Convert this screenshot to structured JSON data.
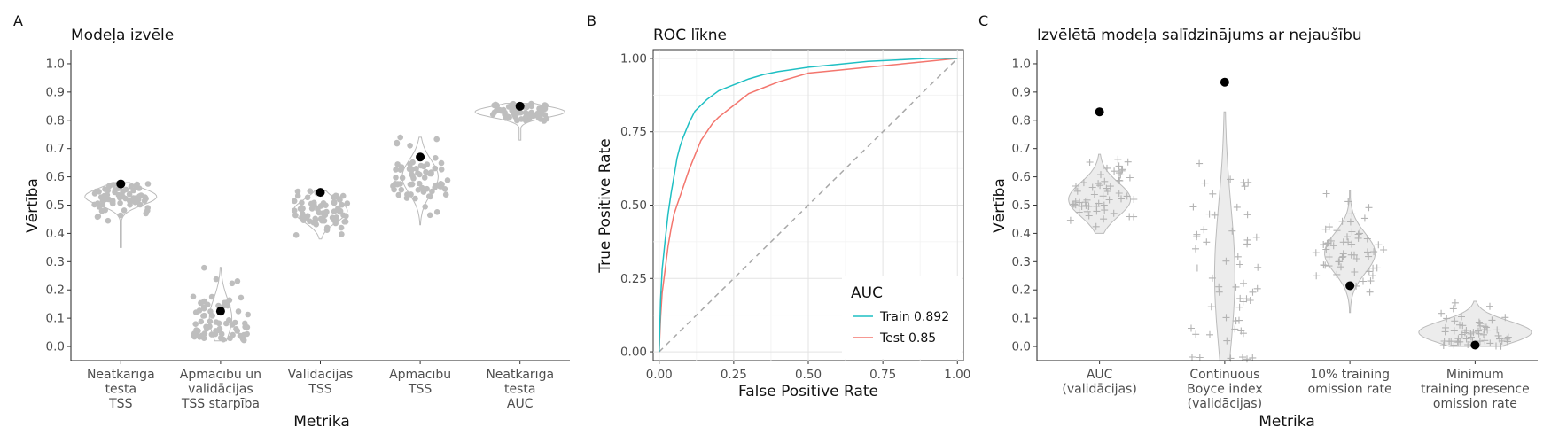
{
  "panel_labels": [
    "A",
    "B",
    "C"
  ],
  "chart_data": [
    {
      "type": "scatter",
      "title": "Modeļa izvēle",
      "xlabel": "Metrika",
      "ylabel": "Vērtība",
      "ylim": [
        -0.05,
        1.05
      ],
      "yticks": [
        "0.0",
        "0.1",
        "0.2",
        "0.3",
        "0.4",
        "0.5",
        "0.6",
        "0.7",
        "0.8",
        "0.9",
        "1.0"
      ],
      "categories": [
        [
          "Neatkarīgā",
          "testa",
          "TSS"
        ],
        [
          "Apmācību un",
          "validācijas",
          "TSS starpība"
        ],
        [
          "Validācijas",
          "TSS"
        ],
        [
          "Apmācību",
          "TSS"
        ],
        [
          "Neatkarīgā",
          "testa",
          "AUC"
        ]
      ],
      "series": [
        {
          "values": [
            0.575,
            0.125,
            0.545,
            0.67,
            0.85
          ]
        }
      ],
      "distributions": [
        {
          "center": 0.53,
          "min": 0.35,
          "max": 0.58,
          "spread": 0.03,
          "violin_width": 0.8
        },
        {
          "center": 0.1,
          "min": 0.02,
          "max": 0.28,
          "spread": 0.07,
          "violin_width": 0.25
        },
        {
          "center": 0.48,
          "min": 0.38,
          "max": 0.55,
          "spread": 0.04,
          "violin_width": 0.6
        },
        {
          "center": 0.6,
          "min": 0.43,
          "max": 0.74,
          "spread": 0.06,
          "violin_width": 0.4
        },
        {
          "center": 0.83,
          "min": 0.73,
          "max": 0.86,
          "spread": 0.02,
          "violin_width": 1.0
        }
      ],
      "colors": {
        "points": "#bebebe",
        "selected": "#000000"
      },
      "grid": false
    },
    {
      "type": "line",
      "title": "ROC līkne",
      "xlabel": "False Positive Rate",
      "ylabel": "True Positive Rate",
      "xlim": [
        -0.02,
        1.02
      ],
      "ylim": [
        -0.03,
        1.03
      ],
      "xticks": [
        "0.00",
        "0.25",
        "0.50",
        "0.75",
        "1.00"
      ],
      "yticks": [
        "0.00",
        "0.25",
        "0.50",
        "0.75",
        "1.00"
      ],
      "legend": {
        "title": "AUC",
        "position": "bottom-right"
      },
      "series": [
        {
          "name": "Train 0.892",
          "color": "#1fbfc3",
          "x": [
            0,
            0.005,
            0.01,
            0.02,
            0.03,
            0.04,
            0.05,
            0.06,
            0.07,
            0.08,
            0.1,
            0.12,
            0.14,
            0.16,
            0.18,
            0.2,
            0.25,
            0.3,
            0.35,
            0.4,
            0.5,
            0.6,
            0.7,
            0.8,
            0.9,
            1.0
          ],
          "y": [
            0,
            0.18,
            0.28,
            0.38,
            0.47,
            0.54,
            0.6,
            0.66,
            0.7,
            0.73,
            0.78,
            0.82,
            0.84,
            0.86,
            0.875,
            0.89,
            0.91,
            0.93,
            0.945,
            0.955,
            0.97,
            0.98,
            0.99,
            0.995,
            1.0,
            1.0
          ]
        },
        {
          "name": "Test 0.85",
          "color": "#f3766e",
          "x": [
            0,
            0.005,
            0.01,
            0.02,
            0.03,
            0.04,
            0.05,
            0.06,
            0.07,
            0.08,
            0.1,
            0.12,
            0.14,
            0.16,
            0.18,
            0.2,
            0.25,
            0.3,
            0.35,
            0.4,
            0.5,
            0.6,
            0.7,
            0.8,
            0.9,
            1.0
          ],
          "y": [
            0,
            0.12,
            0.2,
            0.28,
            0.36,
            0.42,
            0.47,
            0.5,
            0.53,
            0.56,
            0.62,
            0.67,
            0.72,
            0.75,
            0.78,
            0.8,
            0.84,
            0.88,
            0.9,
            0.92,
            0.95,
            0.96,
            0.97,
            0.98,
            0.99,
            1.0
          ]
        }
      ],
      "diagonal": {
        "color": "#aaaaaa",
        "style": "dashed"
      },
      "grid": true
    },
    {
      "type": "scatter",
      "title": "Izvēlētā modeļa salīdzinājums ar nejaušību",
      "xlabel": "Metrika",
      "ylabel": "Vērtība",
      "ylim": [
        -0.05,
        1.05
      ],
      "yticks": [
        "0.0",
        "0.1",
        "0.2",
        "0.3",
        "0.4",
        "0.5",
        "0.6",
        "0.7",
        "0.8",
        "0.9",
        "1.0"
      ],
      "categories": [
        [
          "AUC",
          "(validācijas)"
        ],
        [
          "Continuous",
          "Boyce index",
          "(validācijas)"
        ],
        [
          "10% training",
          "omission rate"
        ],
        [
          "Minimum",
          "training presence",
          "omission rate"
        ]
      ],
      "series": [
        {
          "values": [
            0.83,
            0.935,
            0.215,
            0.005
          ]
        }
      ],
      "distributions": [
        {
          "center": 0.52,
          "min": 0.4,
          "max": 0.68,
          "spread": 0.06,
          "violin_width": 0.55
        },
        {
          "center": 0.25,
          "min": -0.05,
          "max": 0.83,
          "spread": 0.25,
          "violin_width": 0.18
        },
        {
          "center": 0.33,
          "min": 0.12,
          "max": 0.55,
          "spread": 0.07,
          "violin_width": 0.45
        },
        {
          "center": 0.05,
          "min": 0.0,
          "max": 0.16,
          "spread": 0.04,
          "violin_width": 1.0
        }
      ],
      "colors": {
        "points": "#b3b3b3",
        "selected": "#000000"
      },
      "grid": false
    }
  ]
}
